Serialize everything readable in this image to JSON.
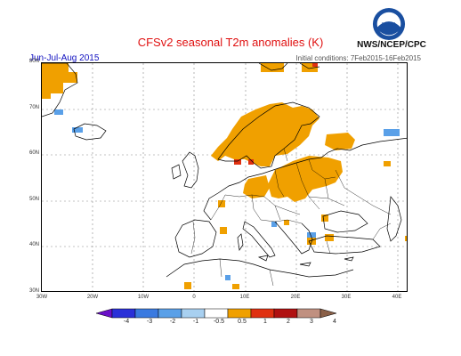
{
  "header": {
    "title": "CFSv2 seasonal T2m anomalies (K)",
    "season": "Jun-Jul-Aug 2015",
    "initial_conditions": "Initial conditions: 7Feb2015-16Feb2015",
    "agency": "NWS/NCEP/CPC",
    "logo_text": "NOAA"
  },
  "map": {
    "lat_labels": [
      "80N",
      "70N",
      "60N",
      "50N",
      "40N",
      "30N"
    ],
    "lon_labels": [
      "30W",
      "20W",
      "10W",
      "0",
      "10E",
      "20E",
      "30E",
      "40E"
    ]
  },
  "colorbar": {
    "tick_labels": [
      "-4",
      "-3",
      "-2",
      "-1",
      "-0.5",
      "0.5",
      "1",
      "2",
      "3",
      "4"
    ],
    "colors": [
      "#6a10c8",
      "#2a30d8",
      "#3a7ae0",
      "#5aa0e8",
      "#a8d0f0",
      "#ffffff",
      "#f0a000",
      "#e03010",
      "#b01010",
      "#c09080",
      "#8a6048"
    ]
  }
}
